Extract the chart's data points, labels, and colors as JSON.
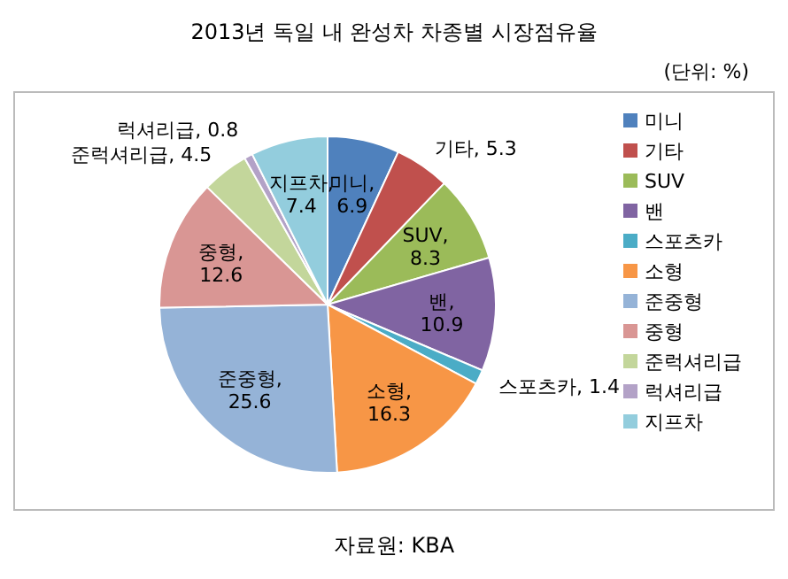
{
  "chart_data": {
    "type": "pie",
    "title": "2013년 독일 내 완성차 차종별 시장점유율",
    "subtitle": "(단위: %)",
    "categories": [
      "미니",
      "기타",
      "SUV",
      "밴",
      "스포츠카",
      "소형",
      "준중형",
      "중형",
      "준럭셔리급",
      "럭셔리급",
      "지프차"
    ],
    "values": [
      6.9,
      5.3,
      8.3,
      10.9,
      1.4,
      16.3,
      25.6,
      12.6,
      4.5,
      0.8,
      7.4
    ],
    "colors": [
      "#4f81bd",
      "#c0504d",
      "#9bbb59",
      "#8064a2",
      "#4bacc6",
      "#f79646",
      "#95b3d7",
      "#d99694",
      "#c3d69b",
      "#b3a2c7",
      "#93cddd"
    ],
    "value_labels": [
      "미니, 6.9",
      "기타, 5.3",
      "SUV, 8.3",
      "밴, 10.9",
      "스포츠카, 1.4",
      "소형, 16.3",
      "준중형, 25.6",
      "중형, 12.6",
      "준럭셔리급, 4.5",
      "럭셔리급, 0.8",
      "지프차, 7.4"
    ],
    "legend": "right",
    "annotations": [
      "자료원: KBA"
    ]
  }
}
